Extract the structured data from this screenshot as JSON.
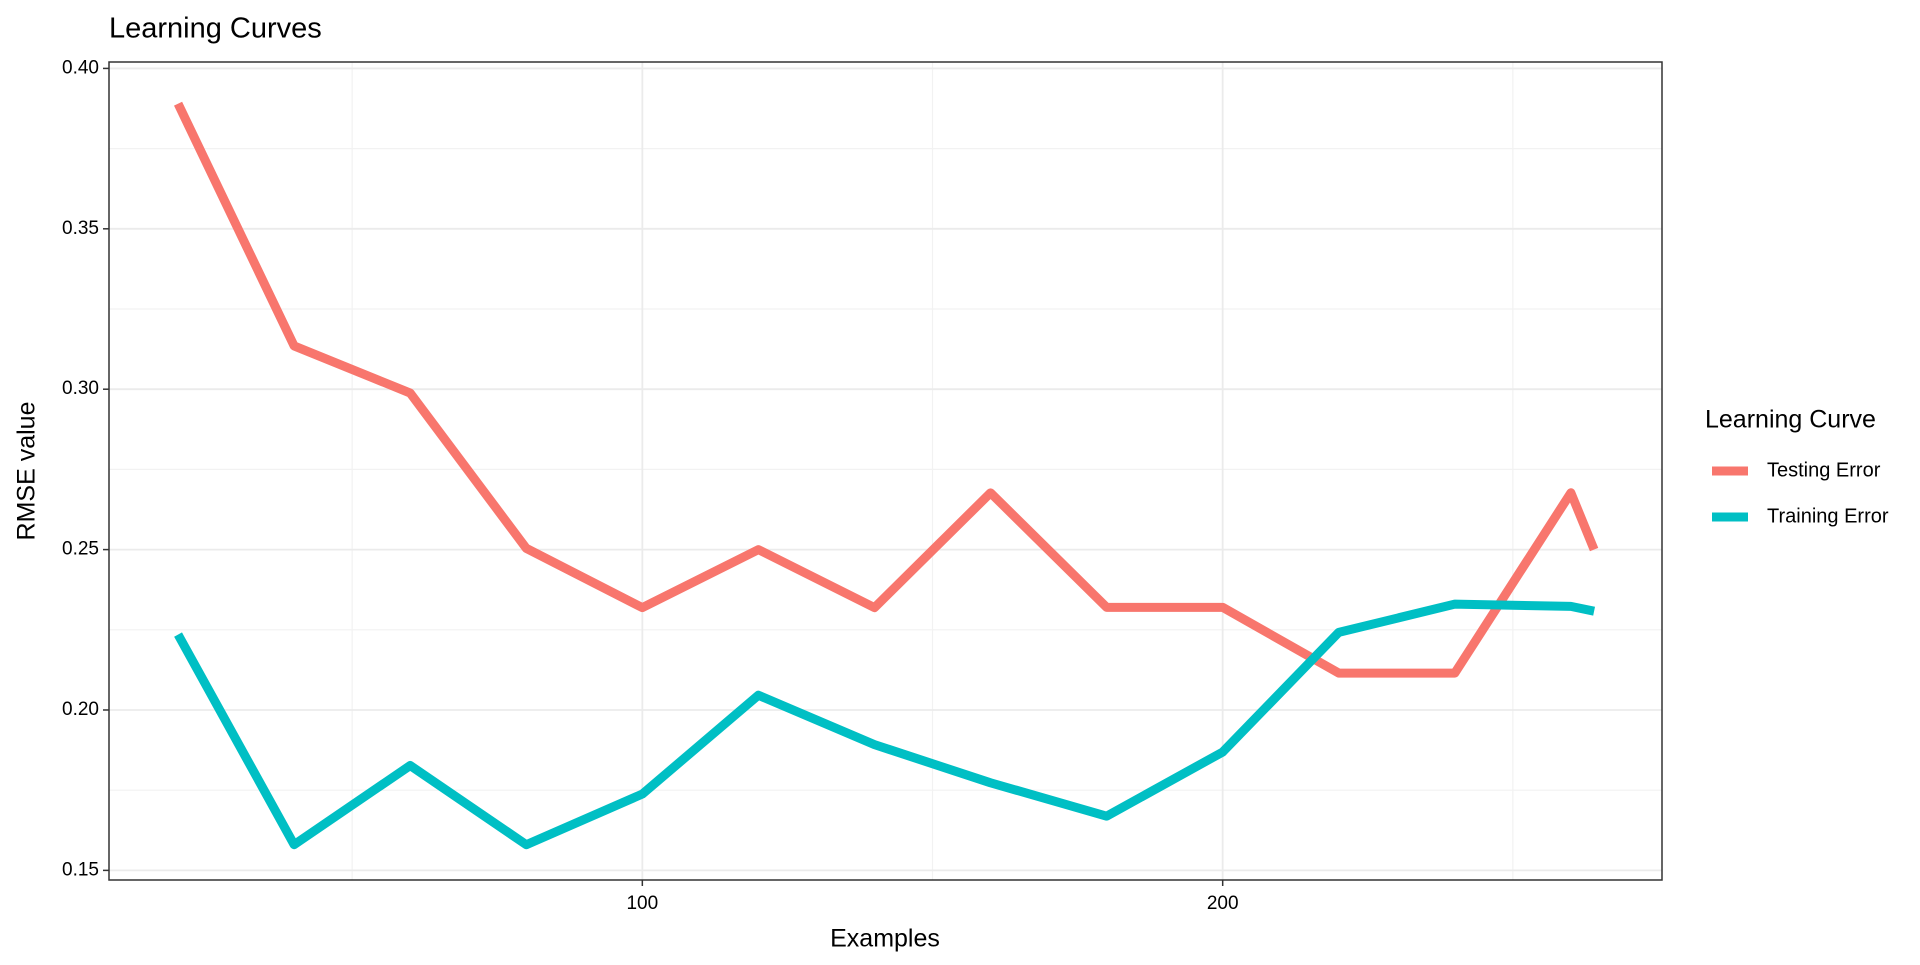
{
  "chart_data": {
    "type": "line",
    "title": "Learning Curves",
    "x_label": "Examples",
    "y_label": "RMSE value",
    "x": [
      20,
      40,
      60,
      80,
      100,
      120,
      140,
      160,
      180,
      200,
      220,
      240,
      260,
      264
    ],
    "series": [
      {
        "name": "Testing Error",
        "color": "#F8766D",
        "values": [
          0.389,
          0.3135,
          0.2988,
          0.2504,
          0.2319,
          0.25,
          0.2319,
          0.2677,
          0.232,
          0.232,
          0.2115,
          0.2115,
          0.2677,
          0.25
        ]
      },
      {
        "name": "Training Error",
        "color": "#00BFC4",
        "values": [
          0.2235,
          0.158,
          0.1827,
          0.158,
          0.1738,
          0.2046,
          0.1892,
          0.1773,
          0.1669,
          0.1869,
          0.2242,
          0.233,
          0.2323,
          0.2308
        ]
      }
    ],
    "legend_title": "Learning Curve",
    "legend_position": "right",
    "xlim": [
      8.1,
      275.7
    ],
    "xticks": [
      100,
      200
    ],
    "ylim": [
      0.147,
      0.402
    ],
    "yticks": [
      0.15,
      {
        "value": 0.2,
        "label": "0.20"
      },
      0.25,
      {
        "value": 0.3,
        "label": "0.30"
      },
      0.35,
      {
        "value": 0.4,
        "label": "0.40"
      }
    ],
    "grid": true,
    "minor_grid": true
  }
}
